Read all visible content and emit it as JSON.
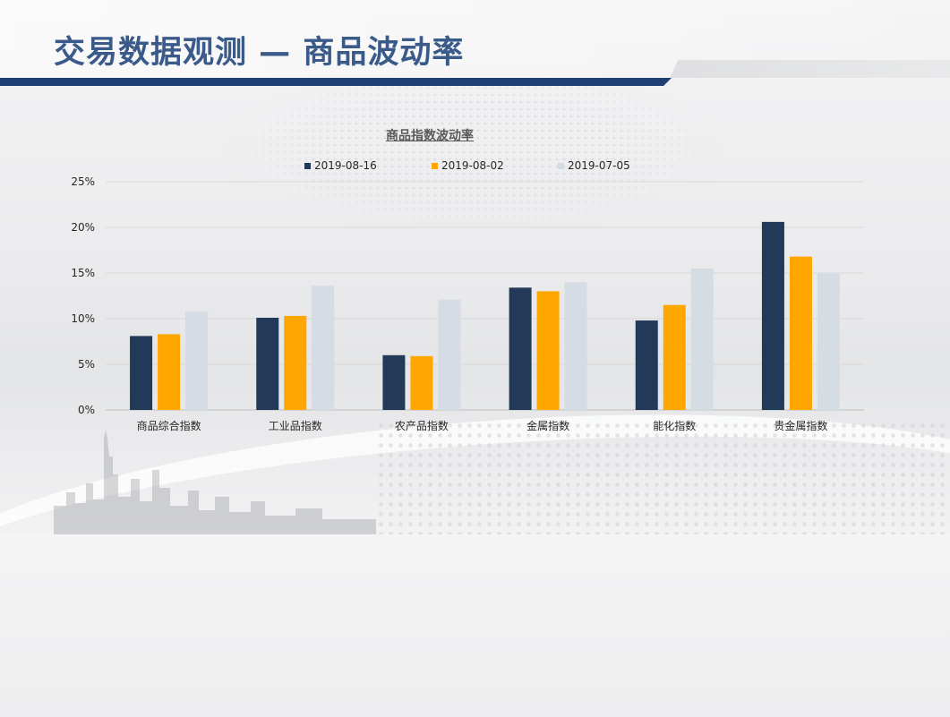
{
  "page": {
    "title": "交易数据观测 — 商品波动率"
  },
  "chart_data": {
    "type": "bar",
    "title": "商品指数波动率",
    "categories": [
      "商品综合指数",
      "工业品指数",
      "农产品指数",
      "金属指数",
      "能化指数",
      "贵金属指数"
    ],
    "series": [
      {
        "name": "2019-08-16",
        "color": "#223a57",
        "values": [
          8.1,
          10.1,
          6.0,
          13.4,
          9.8,
          20.6
        ]
      },
      {
        "name": "2019-08-02",
        "color": "#ffa600",
        "values": [
          8.3,
          10.3,
          5.9,
          13.0,
          11.5,
          16.8
        ]
      },
      {
        "name": "2019-07-05",
        "color": "#d6dce4",
        "values": [
          10.8,
          13.6,
          12.1,
          14.0,
          15.5,
          15.0
        ]
      }
    ],
    "y_ticks": [
      "0%",
      "5%",
      "10%",
      "15%",
      "20%",
      "25%"
    ],
    "ylim": [
      0,
      25
    ],
    "unit": "%",
    "legend_position": "top",
    "grid": true
  }
}
